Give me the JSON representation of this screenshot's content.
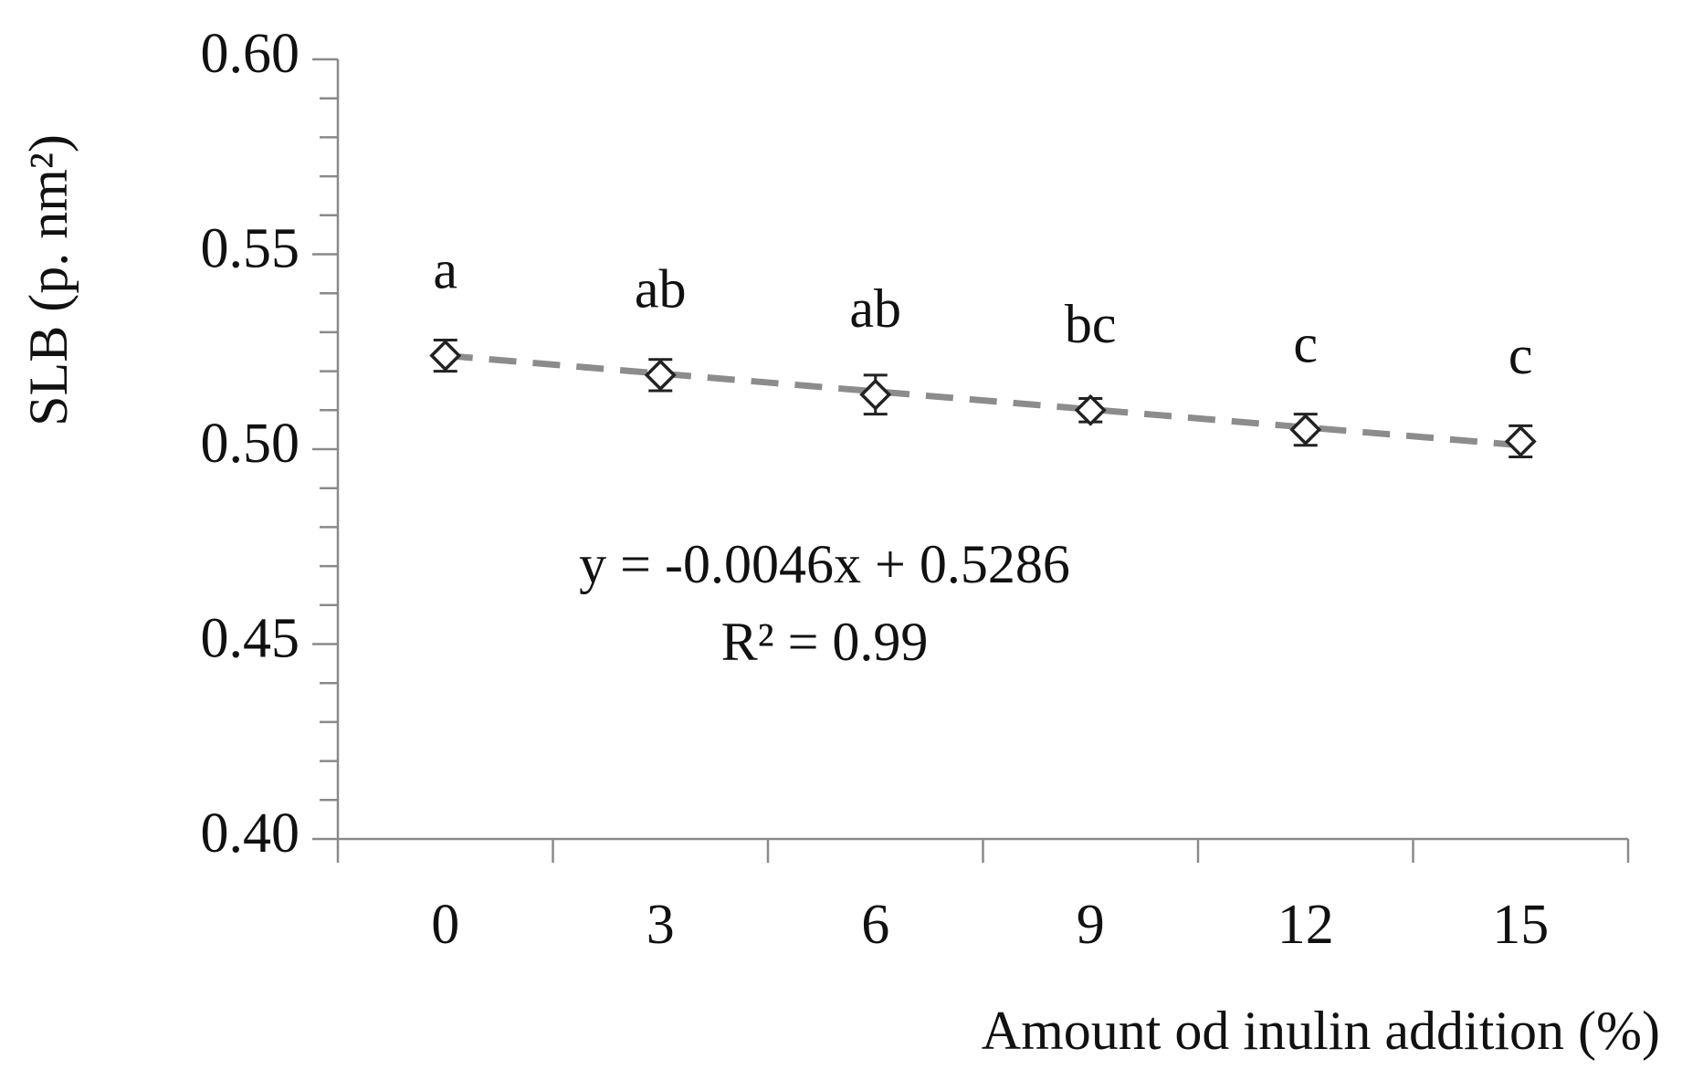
{
  "chart_data": {
    "type": "scatter",
    "xlabel": "Amount od inulin addition (%)",
    "ylabel": "SLB (p. nm²)",
    "categories": [
      "0",
      "3",
      "6",
      "9",
      "12",
      "15"
    ],
    "values": [
      0.524,
      0.519,
      0.514,
      0.51,
      0.505,
      0.502
    ],
    "errors": [
      0.004,
      0.004,
      0.005,
      0.003,
      0.004,
      0.004
    ],
    "value_labels": [
      "a",
      "ab",
      "ab",
      "bc",
      "c",
      "c"
    ],
    "color": "#222222",
    "ylim": [
      0.4,
      0.6
    ],
    "yticks": [
      {
        "value": 0.4,
        "label": "0.40"
      },
      {
        "value": 0.45,
        "label": "0.45"
      },
      {
        "value": 0.5,
        "label": "0.50"
      },
      {
        "value": 0.55,
        "label": "0.55"
      },
      {
        "value": 0.6,
        "label": "0.60"
      }
    ],
    "y_minor_ticks": [
      0.41,
      0.42,
      0.43,
      0.44,
      0.46,
      0.47,
      0.48,
      0.49,
      0.51,
      0.52,
      0.53,
      0.54,
      0.56,
      0.57,
      0.58,
      0.59
    ],
    "trendline": {
      "slope": -0.0046,
      "intercept": 0.5286,
      "color": "#8c8c8c",
      "label": "y = -0.0046x + 0.5286",
      "r2_label": "R² = 0.99"
    }
  }
}
